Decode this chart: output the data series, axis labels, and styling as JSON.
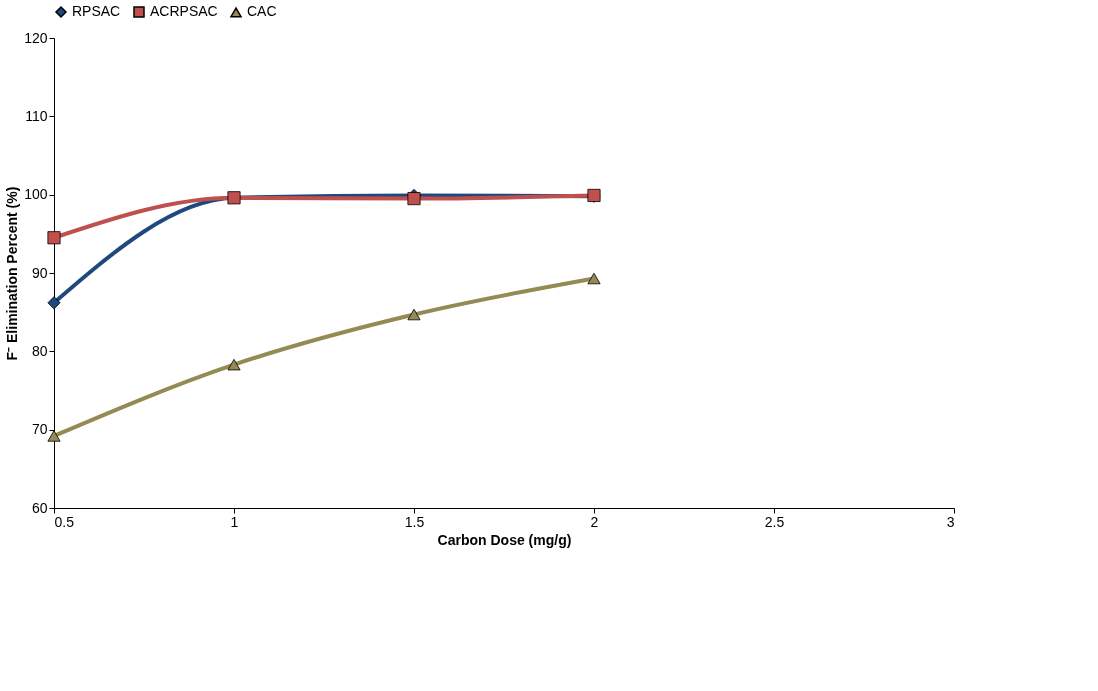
{
  "chart_data": {
    "type": "line",
    "xlabel": "Carbon Dose (mg/g)",
    "ylabel": "F⁻ Elimination Percent (%)",
    "x": [
      0.5,
      1,
      1.5,
      2
    ],
    "xlim": [
      0.5,
      3
    ],
    "xticks": [
      0.5,
      1,
      1.5,
      2,
      2.5,
      3
    ],
    "ylim": [
      60,
      120
    ],
    "yticks": [
      60,
      70,
      80,
      90,
      100,
      110,
      120
    ],
    "grid": false,
    "legend": "top",
    "line_style": "solid",
    "series": [
      {
        "name": "RPSAC",
        "color": "#1f497d",
        "marker": "diamond",
        "values": [
          86.2,
          99.6,
          99.9,
          99.8
        ]
      },
      {
        "name": "ACRPSAC",
        "color": "#c0504d",
        "marker": "square",
        "values": [
          94.5,
          99.6,
          99.5,
          99.9
        ]
      },
      {
        "name": "CAC",
        "color": "#948a54",
        "marker": "triangle",
        "values": [
          69.2,
          78.3,
          84.7,
          89.3
        ]
      }
    ]
  }
}
